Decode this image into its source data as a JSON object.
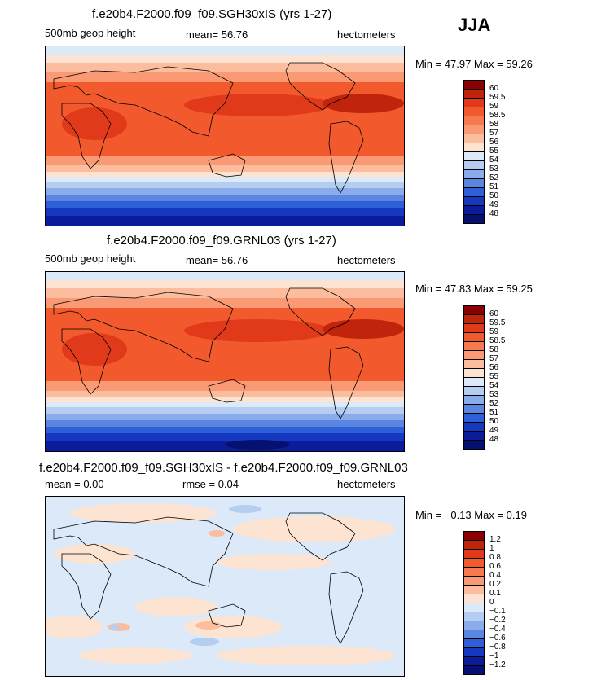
{
  "season": "JJA",
  "panels": [
    {
      "title": "f.e20b4.F2000.f09_f09.SGH30xIS (yrs 1-27)",
      "left_label": "500mb geop height",
      "mid_label": "mean=  56.76",
      "right_label": "hectometers",
      "min_max": "Min =  47.97 Max =  59.26",
      "colorbar": {
        "labels": [
          "60",
          "59.5",
          "59",
          "58.5",
          "58",
          "57",
          "56",
          "55",
          "54",
          "53",
          "52",
          "51",
          "50",
          "49",
          "48"
        ],
        "colors": [
          "#8b0000",
          "#c0240a",
          "#e03a1a",
          "#f25a2e",
          "#f77a4e",
          "#fa9a74",
          "#fcbd9e",
          "#fde4d2",
          "#dbe9f8",
          "#b5cdf1",
          "#8aaceb",
          "#5a85e0",
          "#2f5fd8",
          "#1438c0",
          "#0a1c99",
          "#061070"
        ]
      }
    },
    {
      "title": "f.e20b4.F2000.f09_f09.GRNL03 (yrs 1-27)",
      "left_label": "500mb geop height",
      "mid_label": "mean=  56.76",
      "right_label": "hectometers",
      "min_max": "Min =  47.83 Max =  59.25",
      "colorbar": {
        "labels": [
          "60",
          "59.5",
          "59",
          "58.5",
          "58",
          "57",
          "56",
          "55",
          "54",
          "53",
          "52",
          "51",
          "50",
          "49",
          "48"
        ],
        "colors": [
          "#8b0000",
          "#c0240a",
          "#e03a1a",
          "#f25a2e",
          "#f77a4e",
          "#fa9a74",
          "#fcbd9e",
          "#fde4d2",
          "#dbe9f8",
          "#b5cdf1",
          "#8aaceb",
          "#5a85e0",
          "#2f5fd8",
          "#1438c0",
          "#0a1c99",
          "#061070"
        ]
      }
    },
    {
      "title": "f.e20b4.F2000.f09_f09.SGH30xIS - f.e20b4.F2000.f09_f09.GRNL03",
      "left_label": "mean =    0.00",
      "mid_label": "rmse =    0.04",
      "right_label": "hectometers",
      "min_max": "Min =  −0.13 Max =    0.19",
      "colorbar": {
        "labels": [
          "1.2",
          "1",
          "0.8",
          "0.6",
          "0.4",
          "0.2",
          "0.1",
          "0",
          "−0.1",
          "−0.2",
          "−0.4",
          "−0.6",
          "−0.8",
          "−1",
          "−1.2"
        ],
        "colors": [
          "#8b0000",
          "#c0240a",
          "#e03a1a",
          "#f25a2e",
          "#f77a4e",
          "#fa9a74",
          "#fcbd9e",
          "#fde4d2",
          "#dbe9f8",
          "#b5cdf1",
          "#8aaceb",
          "#5a85e0",
          "#2f5fd8",
          "#1438c0",
          "#0a1c99",
          "#061070"
        ]
      }
    }
  ]
}
